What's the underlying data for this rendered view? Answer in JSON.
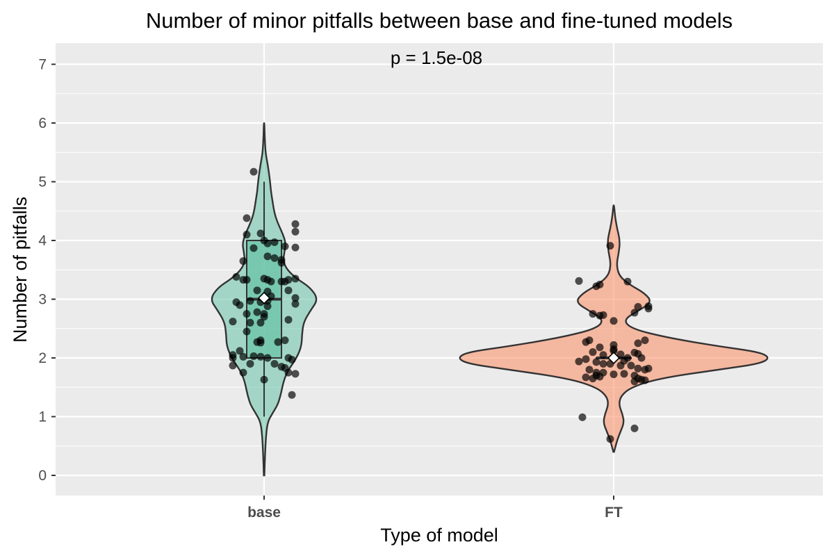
{
  "chart_data": {
    "type": "violin",
    "title": "Number of minor pitfalls between base and fine-tuned models",
    "xlabel": "Type of model",
    "ylabel": "Number of pitfalls",
    "annotation": "p = 1.5e-08",
    "categories": [
      "base",
      "FT"
    ],
    "y_ticks": [
      0,
      1,
      2,
      3,
      4,
      5,
      6,
      7
    ],
    "ylim": [
      -0.35,
      7.3
    ],
    "grid": true,
    "colors": {
      "base": "#66c2a5",
      "FT": "#fc8d62"
    },
    "groups": [
      {
        "name": "base",
        "violin_range": [
          0.0,
          6.0
        ],
        "box": {
          "q1": 2,
          "median": 3,
          "q3": 4,
          "whisker_low": 1,
          "whisker_high": 5
        },
        "mean": 3.02,
        "points": [
          [
            -0.03,
            5.17
          ],
          [
            -0.05,
            4.38
          ],
          [
            0.09,
            4.28
          ],
          [
            0.09,
            4.15
          ],
          [
            -0.05,
            4.1
          ],
          [
            -0.01,
            4.12
          ],
          [
            0.0,
            4.0
          ],
          [
            0.03,
            3.97
          ],
          [
            0.01,
            3.95
          ],
          [
            0.06,
            3.9
          ],
          [
            -0.03,
            3.87
          ],
          [
            0.09,
            3.88
          ],
          [
            0.01,
            3.73
          ],
          [
            0.03,
            3.7
          ],
          [
            -0.06,
            3.65
          ],
          [
            0.05,
            3.62
          ],
          [
            0.05,
            3.67
          ],
          [
            -0.08,
            3.38
          ],
          [
            -0.06,
            3.33
          ],
          [
            -0.05,
            3.33
          ],
          [
            0.0,
            3.35
          ],
          [
            0.01,
            3.33
          ],
          [
            0.02,
            3.3
          ],
          [
            0.05,
            3.3
          ],
          [
            0.07,
            3.33
          ],
          [
            0.06,
            3.3
          ],
          [
            0.09,
            3.35
          ],
          [
            -0.02,
            3.15
          ],
          [
            0.01,
            3.13
          ],
          [
            0.07,
            3.15
          ],
          [
            0.02,
            3.05
          ],
          [
            0.09,
            3.02
          ],
          [
            -0.08,
            2.95
          ],
          [
            -0.07,
            2.9
          ],
          [
            -0.04,
            2.97
          ],
          [
            -0.01,
            2.95
          ],
          [
            0.01,
            2.97
          ],
          [
            0.09,
            2.92
          ],
          [
            0.01,
            2.88
          ],
          [
            -0.05,
            2.75
          ],
          [
            -0.02,
            2.78
          ],
          [
            0.0,
            2.75
          ],
          [
            0.0,
            2.7
          ],
          [
            0.07,
            2.65
          ],
          [
            -0.09,
            2.62
          ],
          [
            -0.04,
            2.6
          ],
          [
            -0.01,
            2.6
          ],
          [
            -0.05,
            2.45
          ],
          [
            -0.01,
            2.3
          ],
          [
            0.06,
            2.3
          ],
          [
            -0.02,
            2.27
          ],
          [
            -0.01,
            2.26
          ],
          [
            0.04,
            2.27
          ],
          [
            -0.07,
            2.12
          ],
          [
            -0.09,
            2.05
          ],
          [
            -0.09,
            2.0
          ],
          [
            0.07,
            2.0
          ],
          [
            -0.06,
            2.02
          ],
          [
            -0.03,
            2.03
          ],
          [
            -0.01,
            2.02
          ],
          [
            0.01,
            2.0
          ],
          [
            0.08,
            1.97
          ],
          [
            -0.04,
            1.9
          ],
          [
            0.03,
            1.9
          ],
          [
            0.05,
            1.85
          ],
          [
            0.06,
            1.83
          ],
          [
            0.07,
            1.75
          ],
          [
            -0.06,
            1.75
          ],
          [
            -0.09,
            1.87
          ],
          [
            0.0,
            1.63
          ],
          [
            0.09,
            1.73
          ],
          [
            0.08,
            1.37
          ]
        ],
        "violin_profile": [
          [
            0.0,
            0.001
          ],
          [
            0.3,
            0.003
          ],
          [
            0.6,
            0.006
          ],
          [
            0.9,
            0.012
          ],
          [
            1.05,
            0.03
          ],
          [
            1.2,
            0.05
          ],
          [
            1.35,
            0.06
          ],
          [
            1.5,
            0.067
          ],
          [
            1.65,
            0.075
          ],
          [
            1.8,
            0.09
          ],
          [
            2.0,
            0.12
          ],
          [
            2.2,
            0.138
          ],
          [
            2.4,
            0.14
          ],
          [
            2.6,
            0.145
          ],
          [
            2.8,
            0.17
          ],
          [
            3.0,
            0.2
          ],
          [
            3.2,
            0.17
          ],
          [
            3.35,
            0.12
          ],
          [
            3.5,
            0.085
          ],
          [
            3.65,
            0.07
          ],
          [
            3.8,
            0.075
          ],
          [
            3.95,
            0.08
          ],
          [
            4.1,
            0.07
          ],
          [
            4.25,
            0.055
          ],
          [
            4.4,
            0.042
          ],
          [
            4.55,
            0.035
          ],
          [
            4.7,
            0.03
          ],
          [
            4.85,
            0.025
          ],
          [
            5.0,
            0.022
          ],
          [
            5.15,
            0.018
          ],
          [
            5.3,
            0.013
          ],
          [
            5.45,
            0.007
          ],
          [
            5.6,
            0.004
          ],
          [
            5.8,
            0.002
          ],
          [
            6.0,
            0.001
          ]
        ]
      },
      {
        "name": "FT",
        "violin_range": [
          0.4,
          4.6
        ],
        "box": {
          "q1": 2,
          "median": 2,
          "q3": 2,
          "whisker_low": 2,
          "whisker_high": 2
        },
        "mean": 2.0,
        "points": [
          [
            -0.01,
            3.91
          ],
          [
            -0.1,
            3.31
          ],
          [
            -0.05,
            3.22
          ],
          [
            -0.04,
            3.25
          ],
          [
            0.04,
            3.3
          ],
          [
            0.07,
            2.87
          ],
          [
            0.1,
            2.88
          ],
          [
            0.1,
            2.84
          ],
          [
            0.06,
            2.77
          ],
          [
            -0.06,
            2.75
          ],
          [
            -0.04,
            2.72
          ],
          [
            -0.03,
            2.73
          ],
          [
            -0.07,
            2.3
          ],
          [
            0.0,
            2.22
          ],
          [
            0.09,
            2.3
          ],
          [
            0.07,
            2.25
          ],
          [
            -0.08,
            2.27
          ],
          [
            0.0,
            2.63
          ],
          [
            -0.04,
            2.18
          ],
          [
            0.0,
            2.15
          ],
          [
            -0.06,
            2.1
          ],
          [
            -0.03,
            2.05
          ],
          [
            0.0,
            2.12
          ],
          [
            0.02,
            2.06
          ],
          [
            0.04,
            2.0
          ],
          [
            0.07,
            2.07
          ],
          [
            0.08,
            2.0
          ],
          [
            0.06,
            2.09
          ],
          [
            -0.1,
            1.94
          ],
          [
            -0.08,
            1.98
          ],
          [
            -0.05,
            1.93
          ],
          [
            -0.03,
            1.9
          ],
          [
            -0.01,
            1.9
          ],
          [
            0.02,
            1.87
          ],
          [
            0.03,
            1.95
          ],
          [
            0.05,
            1.87
          ],
          [
            0.07,
            1.82
          ],
          [
            0.09,
            1.8
          ],
          [
            0.1,
            1.82
          ],
          [
            -0.07,
            1.8
          ],
          [
            -0.05,
            1.75
          ],
          [
            -0.03,
            1.75
          ],
          [
            0.0,
            1.72
          ],
          [
            0.03,
            1.73
          ],
          [
            0.06,
            1.7
          ],
          [
            -0.05,
            1.7
          ],
          [
            -0.06,
            1.65
          ],
          [
            -0.08,
            1.67
          ],
          [
            -0.04,
            1.68
          ],
          [
            0.07,
            1.65
          ],
          [
            0.08,
            1.63
          ],
          [
            0.09,
            1.62
          ],
          [
            0.06,
            1.6
          ],
          [
            -0.09,
            0.99
          ],
          [
            -0.01,
            0.62
          ],
          [
            0.06,
            0.8
          ]
        ],
        "violin_profile": [
          [
            0.4,
            0.001
          ],
          [
            0.6,
            0.01
          ],
          [
            0.75,
            0.02
          ],
          [
            0.9,
            0.03
          ],
          [
            1.05,
            0.025
          ],
          [
            1.2,
            0.015
          ],
          [
            1.35,
            0.02
          ],
          [
            1.5,
            0.05
          ],
          [
            1.65,
            0.13
          ],
          [
            1.8,
            0.3
          ],
          [
            1.9,
            0.42
          ],
          [
            2.0,
            0.45
          ],
          [
            2.1,
            0.42
          ],
          [
            2.2,
            0.3
          ],
          [
            2.35,
            0.15
          ],
          [
            2.5,
            0.05
          ],
          [
            2.65,
            0.028
          ],
          [
            2.8,
            0.07
          ],
          [
            2.95,
            0.11
          ],
          [
            3.1,
            0.09
          ],
          [
            3.25,
            0.045
          ],
          [
            3.4,
            0.015
          ],
          [
            3.6,
            0.008
          ],
          [
            3.8,
            0.015
          ],
          [
            4.0,
            0.018
          ],
          [
            4.2,
            0.01
          ],
          [
            4.4,
            0.004
          ],
          [
            4.6,
            0.001
          ]
        ]
      }
    ]
  }
}
